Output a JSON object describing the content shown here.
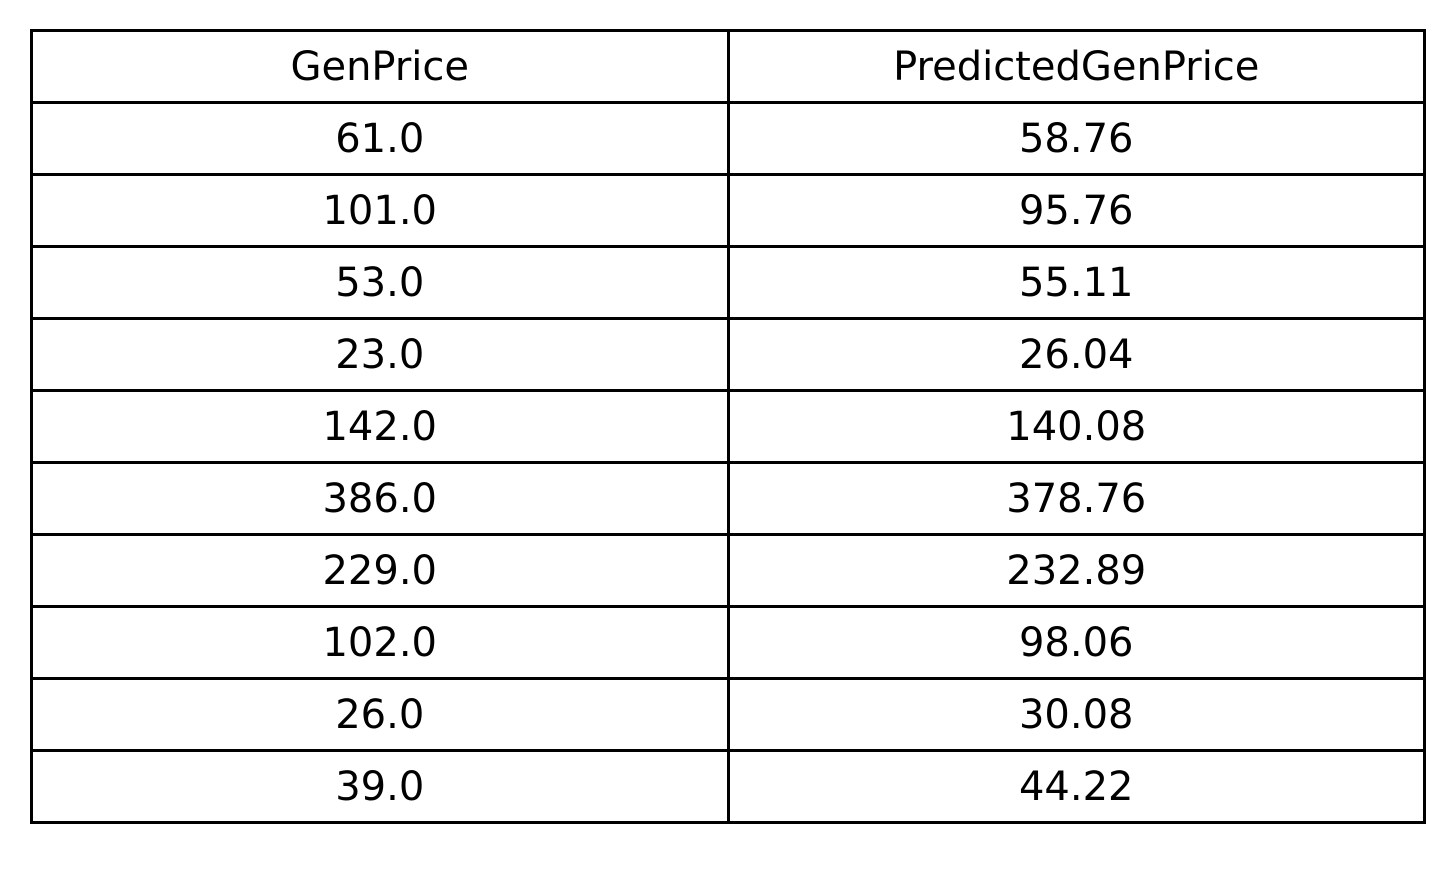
{
  "chart_data": {
    "type": "table",
    "columns": [
      "GenPrice",
      "PredictedGenPrice"
    ],
    "rows": [
      [
        "61.0",
        "58.76"
      ],
      [
        "101.0",
        "95.76"
      ],
      [
        "53.0",
        "55.11"
      ],
      [
        "23.0",
        "26.04"
      ],
      [
        "142.0",
        "140.08"
      ],
      [
        "386.0",
        "378.76"
      ],
      [
        "229.0",
        "232.89"
      ],
      [
        "102.0",
        "98.06"
      ],
      [
        "26.0",
        "30.08"
      ],
      [
        "39.0",
        "44.22"
      ]
    ]
  }
}
